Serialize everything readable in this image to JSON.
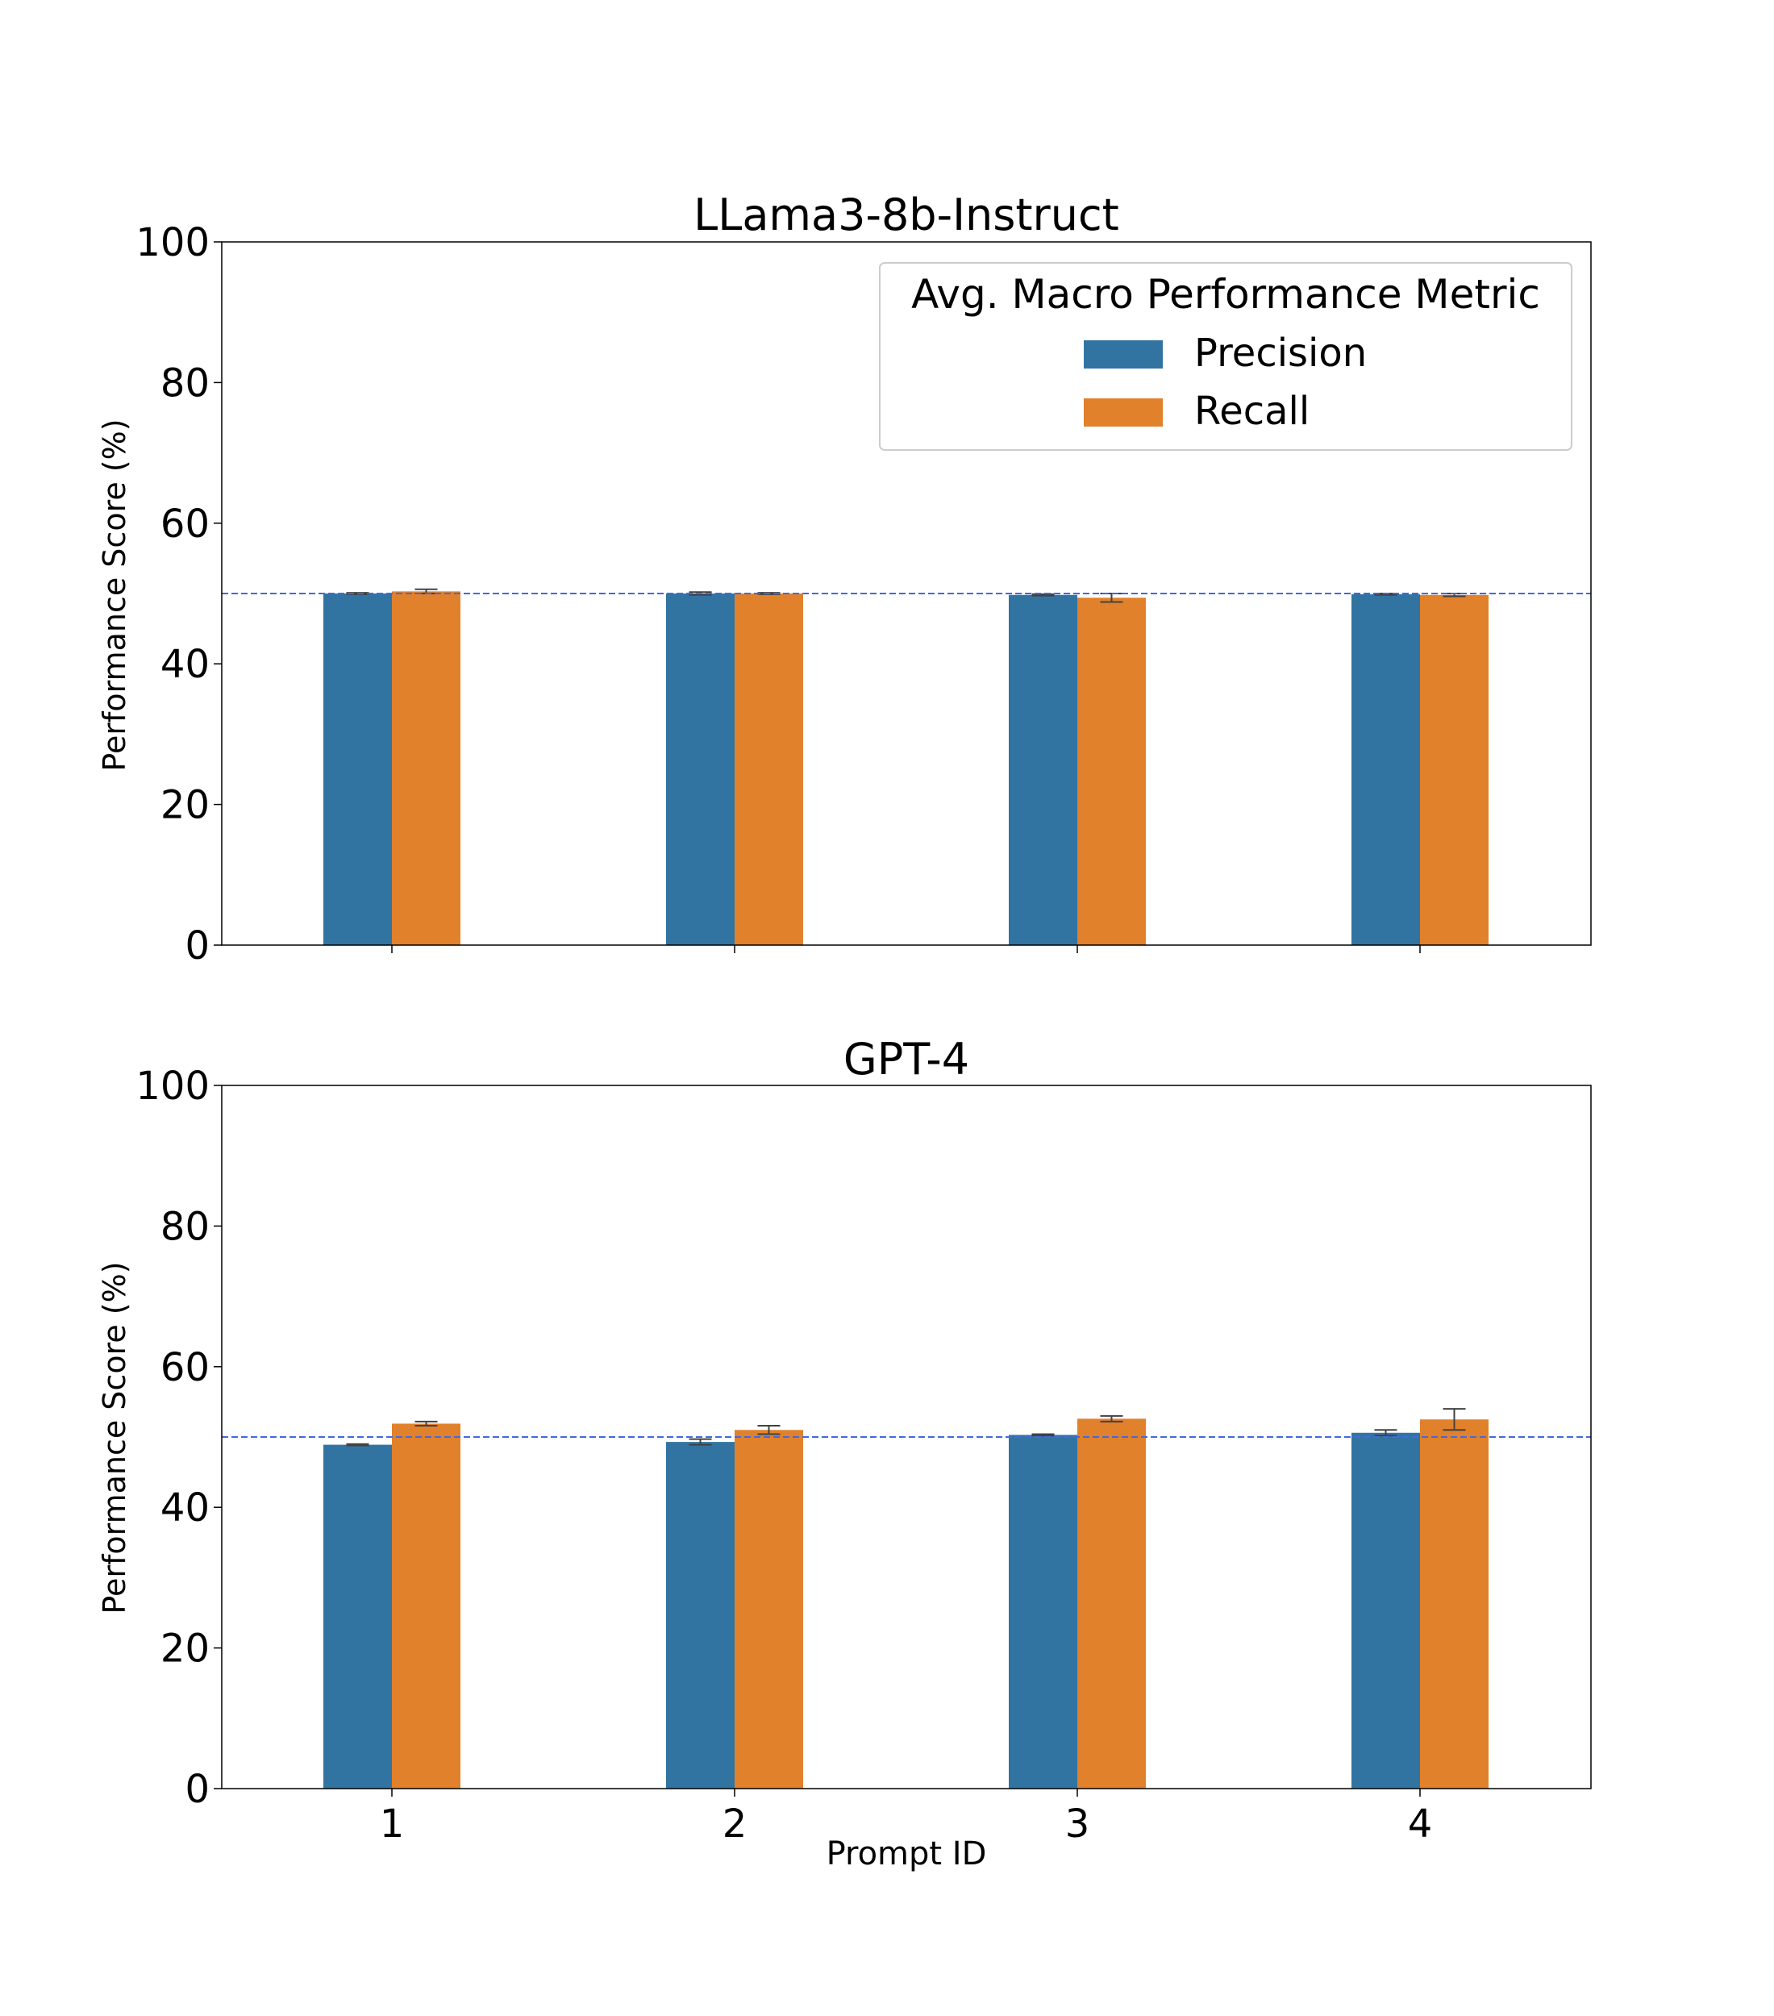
{
  "figure": {
    "xlabel": "Prompt ID",
    "ylabel": "Performance Score (%)",
    "reference_line_value": 50,
    "legend": {
      "title": "Avg. Macro Performance Metric",
      "placement": "top-right of upper panel"
    }
  },
  "chart_data": [
    {
      "type": "bar",
      "title": "LLama3-8b-Instruct",
      "xlabel": "",
      "ylabel": "Performance Score (%)",
      "categories": [
        "1",
        "2",
        "3",
        "4"
      ],
      "show_xticklabels": false,
      "ylim": [
        0,
        100
      ],
      "yticks": [
        0,
        20,
        40,
        60,
        80,
        100
      ],
      "grid": false,
      "reference_line": 50,
      "legend": "top-right",
      "series": [
        {
          "name": "Precision",
          "color": "#3274a1",
          "values": [
            50.0,
            50.0,
            49.8,
            49.9
          ],
          "errors": [
            0.1,
            0.2,
            0.1,
            0.1
          ]
        },
        {
          "name": "Recall",
          "color": "#e1812c",
          "values": [
            50.3,
            50.0,
            49.4,
            49.8
          ],
          "errors": [
            0.3,
            0.1,
            0.6,
            0.2
          ]
        }
      ]
    },
    {
      "type": "bar",
      "title": "GPT-4",
      "xlabel": "Prompt ID",
      "ylabel": "Performance Score (%)",
      "categories": [
        "1",
        "2",
        "3",
        "4"
      ],
      "show_xticklabels": true,
      "ylim": [
        0,
        100
      ],
      "yticks": [
        0,
        20,
        40,
        60,
        80,
        100
      ],
      "grid": false,
      "reference_line": 50,
      "series": [
        {
          "name": "Precision",
          "color": "#3274a1",
          "values": [
            48.9,
            49.3,
            50.3,
            50.6
          ],
          "errors": [
            0.1,
            0.4,
            0.1,
            0.4
          ]
        },
        {
          "name": "Recall",
          "color": "#e1812c",
          "values": [
            51.9,
            51.0,
            52.6,
            52.5
          ],
          "errors": [
            0.3,
            0.6,
            0.4,
            1.5
          ]
        }
      ]
    }
  ]
}
